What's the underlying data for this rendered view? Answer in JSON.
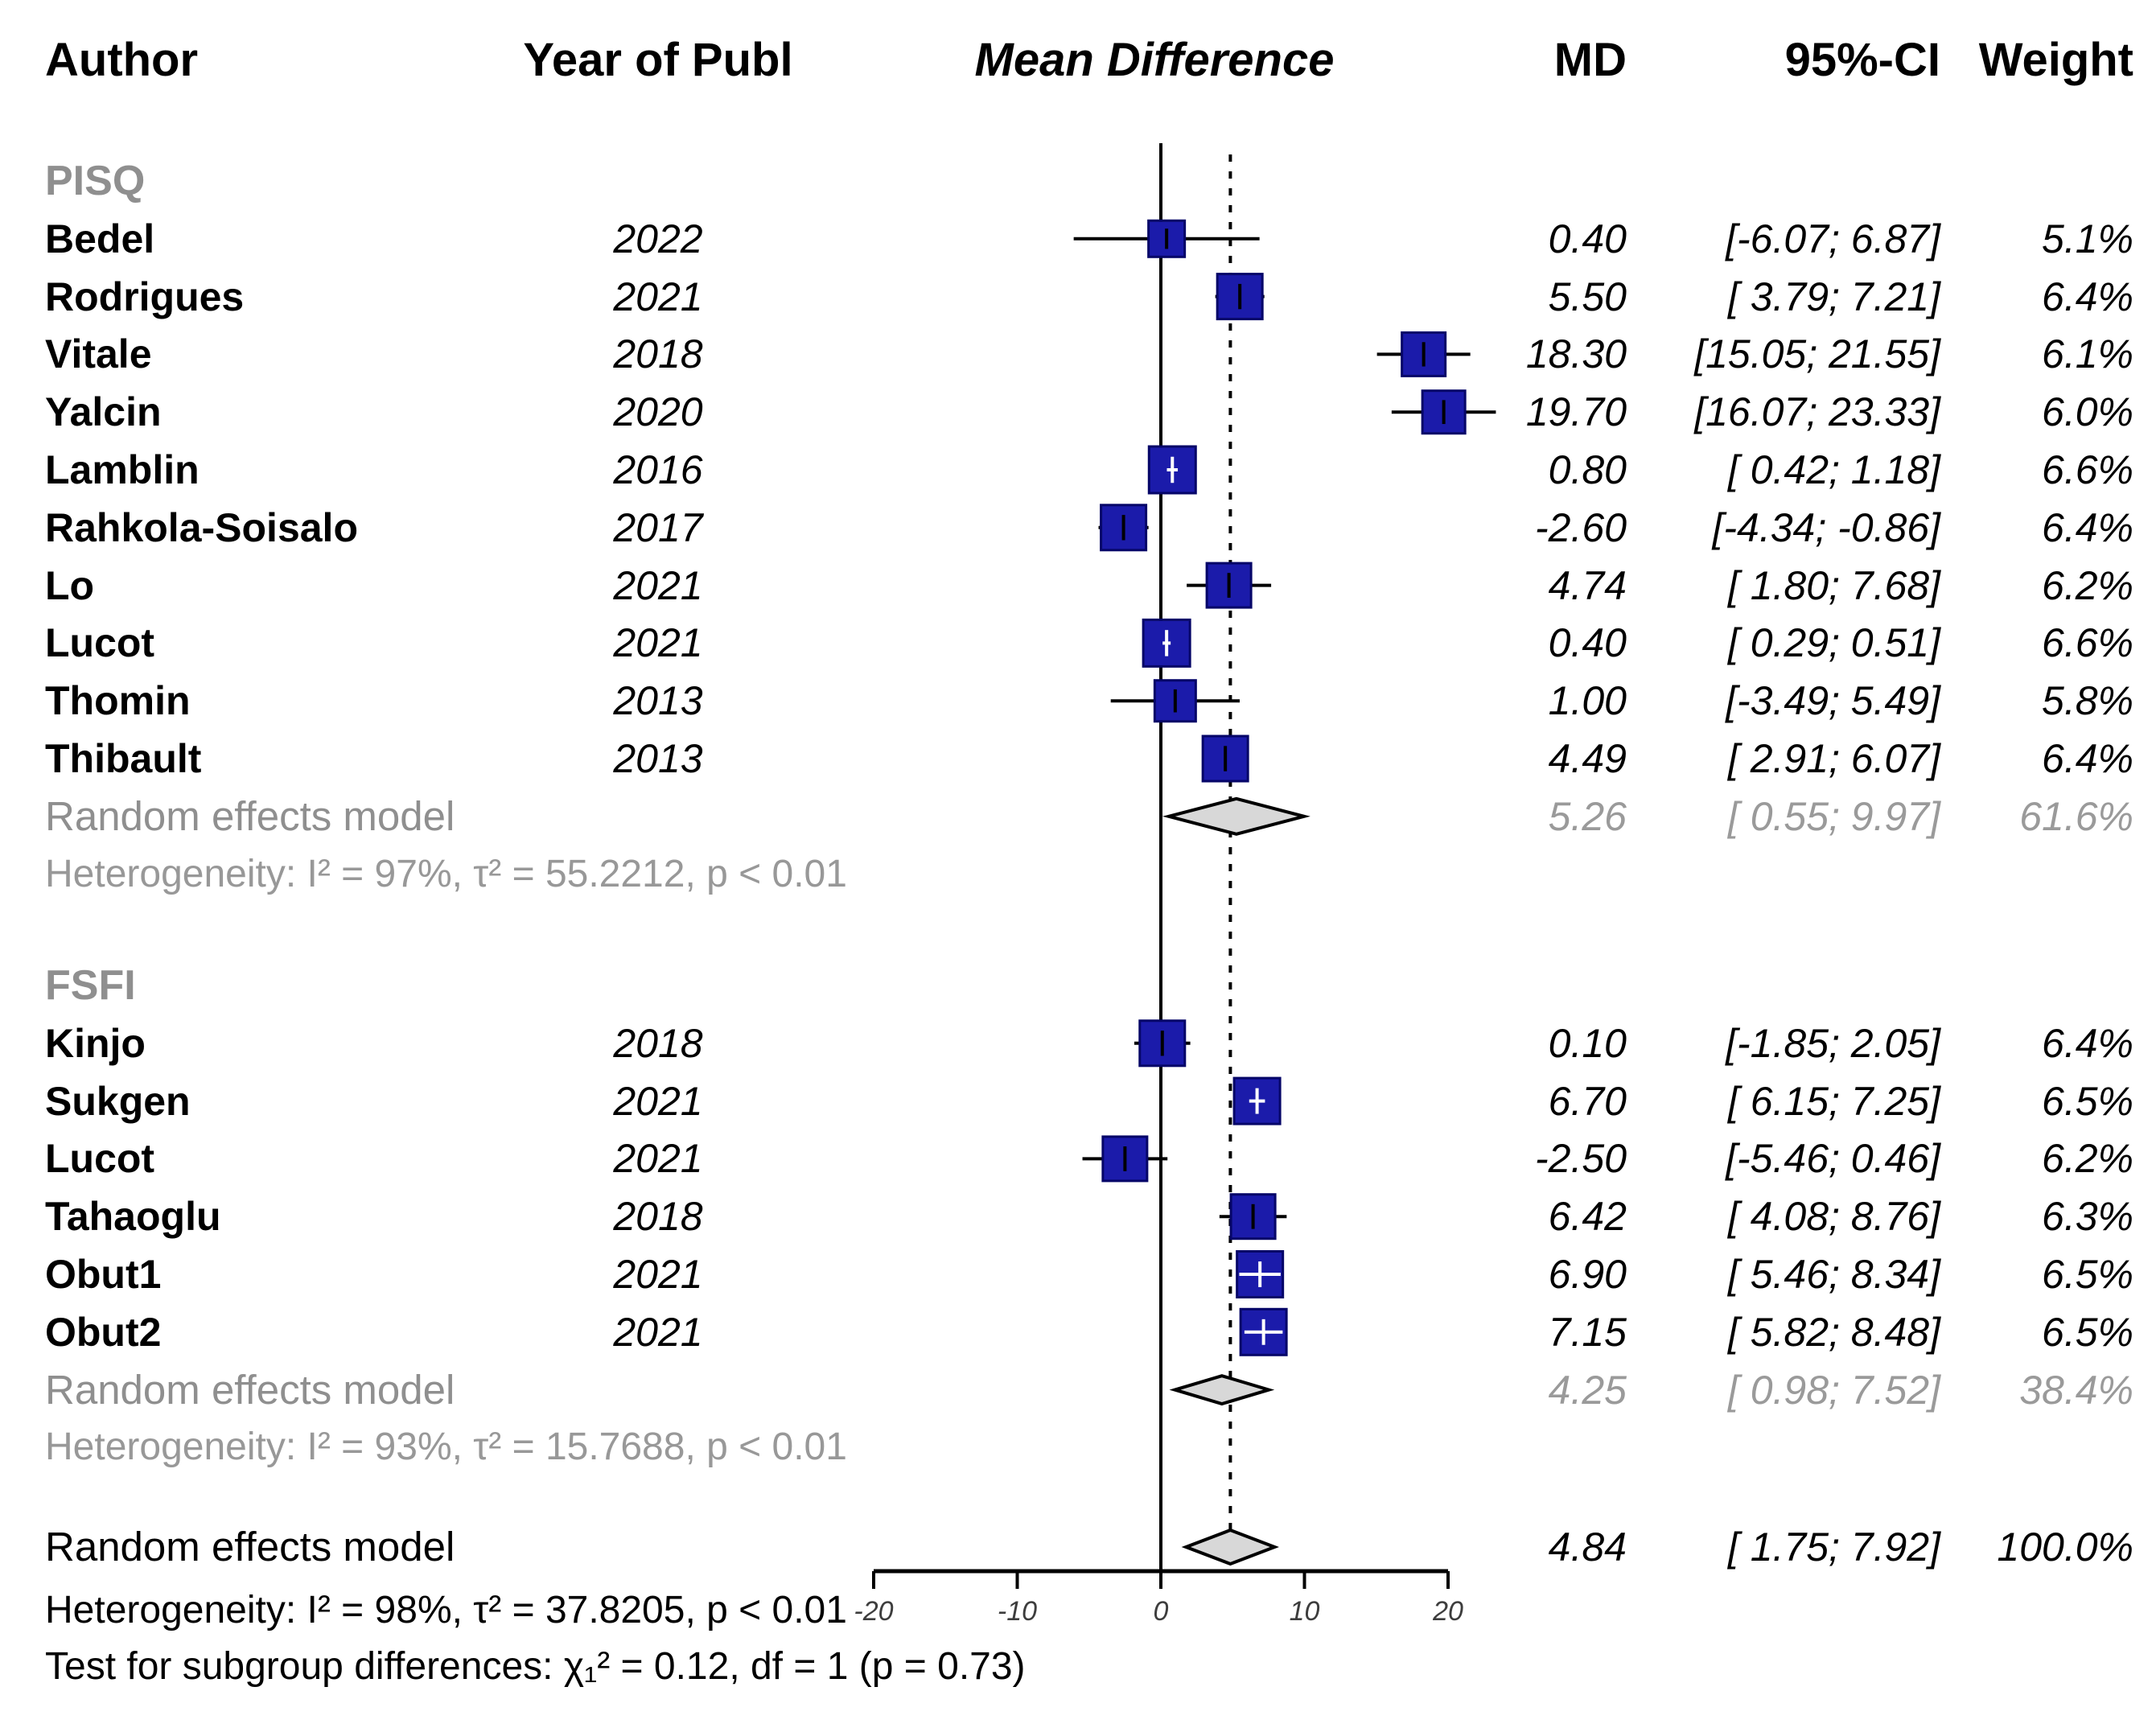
{
  "header": {
    "author": "Author",
    "year": "Year of Publ",
    "plot": "Mean Difference",
    "md": "MD",
    "ci": "95%-CI",
    "weight": "Weight"
  },
  "colors": {
    "square_fill": "#1b1baa",
    "square_border": "#060668",
    "diamond_fill": "#d8d8d8",
    "diamond_border": "#000000",
    "axis": "#000000",
    "gray_text": "#8f8f8f"
  },
  "chart_data": {
    "type": "forest",
    "xlim": [
      -20,
      20
    ],
    "ticks": [
      "-20",
      "-10",
      "0",
      "10",
      "20"
    ],
    "tick_values": [
      -20,
      -10,
      0,
      10,
      20
    ],
    "ref_line": 0,
    "dotted_line_at": 4.84,
    "groups": [
      {
        "label": "PISQ",
        "studies": [
          {
            "author": "Bedel",
            "year": "2022",
            "md": 0.4,
            "lower": -6.07,
            "upper": 6.87,
            "weight": 5.1,
            "md_text": "0.40",
            "ci_text": "[-6.07;  6.87]",
            "weight_text": "5.1%"
          },
          {
            "author": "Rodrigues",
            "year": "2021",
            "md": 5.5,
            "lower": 3.79,
            "upper": 7.21,
            "weight": 6.4,
            "md_text": "5.50",
            "ci_text": "[ 3.79;  7.21]",
            "weight_text": "6.4%"
          },
          {
            "author": "Vitale",
            "year": "2018",
            "md": 18.3,
            "lower": 15.05,
            "upper": 21.55,
            "weight": 6.1,
            "md_text": "18.30",
            "ci_text": "[15.05; 21.55]",
            "weight_text": "6.1%"
          },
          {
            "author": "Yalcin",
            "year": "2020",
            "md": 19.7,
            "lower": 16.07,
            "upper": 23.33,
            "weight": 6.0,
            "md_text": "19.70",
            "ci_text": "[16.07; 23.33]",
            "weight_text": "6.0%"
          },
          {
            "author": "Lamblin",
            "year": "2016",
            "md": 0.8,
            "lower": 0.42,
            "upper": 1.18,
            "weight": 6.6,
            "md_text": "0.80",
            "ci_text": "[ 0.42;  1.18]",
            "weight_text": "6.6%"
          },
          {
            "author": "Rahkola-Soisalo",
            "year": "2017",
            "md": -2.6,
            "lower": -4.34,
            "upper": -0.86,
            "weight": 6.4,
            "md_text": "-2.60",
            "ci_text": "[-4.34; -0.86]",
            "weight_text": "6.4%"
          },
          {
            "author": "Lo",
            "year": "2021",
            "md": 4.74,
            "lower": 1.8,
            "upper": 7.68,
            "weight": 6.2,
            "md_text": "4.74",
            "ci_text": "[ 1.80;  7.68]",
            "weight_text": "6.2%"
          },
          {
            "author": "Lucot",
            "year": "2021",
            "md": 0.4,
            "lower": 0.29,
            "upper": 0.51,
            "weight": 6.6,
            "md_text": "0.40",
            "ci_text": "[ 0.29;  0.51]",
            "weight_text": "6.6%"
          },
          {
            "author": "Thomin",
            "year": "2013",
            "md": 1.0,
            "lower": -3.49,
            "upper": 5.49,
            "weight": 5.8,
            "md_text": "1.00",
            "ci_text": "[-3.49;  5.49]",
            "weight_text": "5.8%"
          },
          {
            "author": "Thibault",
            "year": "2013",
            "md": 4.49,
            "lower": 2.91,
            "upper": 6.07,
            "weight": 6.4,
            "md_text": "4.49",
            "ci_text": "[ 2.91;  6.07]",
            "weight_text": "6.4%"
          }
        ],
        "summary": {
          "label": "Random effects model",
          "md": 5.26,
          "lower": 0.55,
          "upper": 9.97,
          "weight": 61.6,
          "md_text": "5.26",
          "ci_text": "[ 0.55;  9.97]",
          "weight_text": "61.6%"
        },
        "heterogeneity": "Heterogeneity: I² = 97%, τ² = 55.2212, p < 0.01"
      },
      {
        "label": "FSFI",
        "studies": [
          {
            "author": "Kinjo",
            "year": "2018",
            "md": 0.1,
            "lower": -1.85,
            "upper": 2.05,
            "weight": 6.4,
            "md_text": "0.10",
            "ci_text": "[-1.85;  2.05]",
            "weight_text": "6.4%"
          },
          {
            "author": "Sukgen",
            "year": "2021",
            "md": 6.7,
            "lower": 6.15,
            "upper": 7.25,
            "weight": 6.5,
            "md_text": "6.70",
            "ci_text": "[ 6.15;  7.25]",
            "weight_text": "6.5%"
          },
          {
            "author": "Lucot",
            "year": "2021",
            "md": -2.5,
            "lower": -5.46,
            "upper": 0.46,
            "weight": 6.2,
            "md_text": "-2.50",
            "ci_text": "[-5.46;  0.46]",
            "weight_text": "6.2%"
          },
          {
            "author": "Tahaoglu",
            "year": "2018",
            "md": 6.42,
            "lower": 4.08,
            "upper": 8.76,
            "weight": 6.3,
            "md_text": "6.42",
            "ci_text": "[ 4.08;  8.76]",
            "weight_text": "6.3%"
          },
          {
            "author": "Obut1",
            "year": "2021",
            "md": 6.9,
            "lower": 5.46,
            "upper": 8.34,
            "weight": 6.5,
            "md_text": "6.90",
            "ci_text": "[ 5.46;  8.34]",
            "weight_text": "6.5%"
          },
          {
            "author": "Obut2",
            "year": "2021",
            "md": 7.15,
            "lower": 5.82,
            "upper": 8.48,
            "weight": 6.5,
            "md_text": "7.15",
            "ci_text": "[ 5.82;  8.48]",
            "weight_text": "6.5%"
          }
        ],
        "summary": {
          "label": "Random effects model",
          "md": 4.25,
          "lower": 0.98,
          "upper": 7.52,
          "weight": 38.4,
          "md_text": "4.25",
          "ci_text": "[ 0.98;  7.52]",
          "weight_text": "38.4%"
        },
        "heterogeneity": "Heterogeneity: I² = 93%, τ² = 15.7688, p < 0.01"
      }
    ],
    "overall": {
      "summary": {
        "label": "Random effects model",
        "md": 4.84,
        "lower": 1.75,
        "upper": 7.92,
        "weight": 100.0,
        "md_text": "4.84",
        "ci_text": "[ 1.75;  7.92]",
        "weight_text": "100.0%"
      },
      "heterogeneity": "Heterogeneity: I² = 98%, τ² = 37.8205, p < 0.01",
      "subgroup_test": "Test for subgroup differences: χ₁² = 0.12, df = 1 (p = 0.73)"
    }
  }
}
